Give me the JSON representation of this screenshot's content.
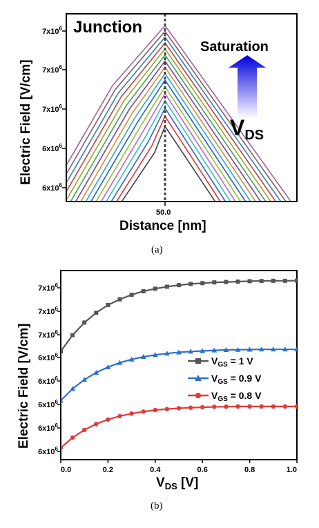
{
  "colors": {
    "fan": [
      "#404040",
      "#e03030",
      "#3060d0",
      "#30c0c0",
      "#c060d0",
      "#90c030",
      "#2060c0",
      "#30a0e0",
      "#d09030",
      "#8040a0",
      "#40a060",
      "#a0a030",
      "#c04040",
      "#3080c0",
      "#806060",
      "#a060a0"
    ],
    "vgs_1": "#555555",
    "vgs_09": "#2a6fd0",
    "vgs_08": "#e03a3a",
    "arrow_top": "#0000dd",
    "arrow_bottom": "#ffffff"
  },
  "chart_data": [
    {
      "type": "line",
      "caption": "(a)",
      "xlabel": "Distance [nm]",
      "ylabel": "Electric Field [V/cm]",
      "x_tick_labels": [
        "50.0"
      ],
      "y_tick_labels": [
        "7x10^6",
        "7x10^6",
        "7x10^6",
        "6x10^6",
        "6x10^6"
      ],
      "junction_x": 50.0,
      "annotations": {
        "junction": "Junction",
        "saturation": "Saturation",
        "vds_main": "V",
        "vds_sub": "DS"
      },
      "series_count": 16
    },
    {
      "type": "line",
      "caption": "(b)",
      "xlabel_main": "V",
      "xlabel_sub": "DS",
      "xlabel_unit": " [V]",
      "ylabel": "Electric Field [V/cm]",
      "xlim": [
        0.0,
        1.0
      ],
      "x_tick_labels": [
        "0.0",
        "0.2",
        "0.4",
        "0.6",
        "0.8",
        "1.0"
      ],
      "y_tick_labels": [
        "7x10^6",
        "7x10^6",
        "7x10^6",
        "6x10^6",
        "6x10^6",
        "6x10^6",
        "6x10^6",
        "6x10^6"
      ],
      "x": [
        0.0,
        0.05,
        0.1,
        0.15,
        0.2,
        0.25,
        0.3,
        0.35,
        0.4,
        0.45,
        0.5,
        0.55,
        0.6,
        0.65,
        0.7,
        0.75,
        0.8,
        0.85,
        0.9,
        0.95,
        1.0
      ],
      "series": [
        {
          "name_main": "V",
          "name_sub": "GS",
          "name_tail": " = 1 V",
          "marker": "square",
          "values": [
            6.49,
            6.572,
            6.636,
            6.686,
            6.725,
            6.754,
            6.777,
            6.795,
            6.808,
            6.818,
            6.826,
            6.832,
            6.836,
            6.84,
            6.842,
            6.844,
            6.846,
            6.847,
            6.848,
            6.848,
            6.849
          ]
        },
        {
          "name_main": "V",
          "name_sub": "GS",
          "name_tail": " = 0.9 V",
          "marker": "triangle",
          "values": [
            6.24,
            6.3,
            6.346,
            6.382,
            6.41,
            6.432,
            6.449,
            6.462,
            6.472,
            6.479,
            6.485,
            6.489,
            6.492,
            6.495,
            6.497,
            6.498,
            6.499,
            6.5,
            6.5,
            6.5,
            6.5
          ]
        },
        {
          "name_main": "V",
          "name_sub": "GS",
          "name_tail": " = 0.8 V",
          "marker": "circle",
          "values": [
            6.0,
            6.052,
            6.091,
            6.121,
            6.144,
            6.161,
            6.174,
            6.184,
            6.192,
            6.197,
            6.201,
            6.204,
            6.206,
            6.208,
            6.209,
            6.21,
            6.21,
            6.21,
            6.21,
            6.21,
            6.21
          ]
        }
      ]
    }
  ]
}
